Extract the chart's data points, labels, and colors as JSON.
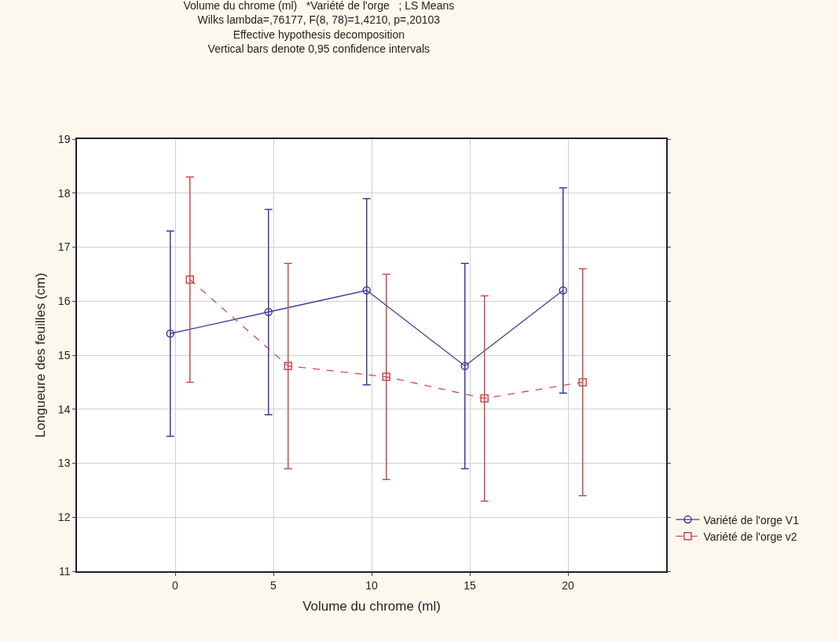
{
  "chart_data": {
    "type": "line",
    "title": "Volume du chrome (ml)   *Variété de l'orge   ; LS Means",
    "subtitle": "Wilks lambda=,76177, F(8, 78)=1,4210, p=,20103\nEffective hypothesis decomposition\nVertical bars denote 0,95 confidence intervals",
    "xlabel": "Volume du chrome (ml)",
    "ylabel": "Longueure des feuilles (cm)",
    "categories": [
      "0",
      "5",
      "10",
      "15",
      "20"
    ],
    "series": [
      {
        "name": "Variété de l'orge V1",
        "color": "#3c3c9c",
        "marker": "circle",
        "line_style": "solid",
        "values": [
          15.4,
          15.8,
          16.2,
          14.8,
          16.2
        ],
        "errors": [
          [
            13.5,
            17.3
          ],
          [
            13.9,
            17.7
          ],
          [
            14.45,
            17.9
          ],
          [
            12.9,
            16.7
          ],
          [
            14.3,
            18.1
          ]
        ]
      },
      {
        "name": "Variété de l'orge v2",
        "color": "#cc4c4c",
        "marker": "square",
        "line_style": "dashed",
        "values": [
          16.4,
          14.8,
          14.6,
          14.2,
          14.5
        ],
        "errors": [
          [
            14.5,
            18.3
          ],
          [
            12.9,
            16.7
          ],
          [
            12.7,
            16.5
          ],
          [
            12.3,
            16.1
          ],
          [
            12.4,
            16.6
          ]
        ]
      }
    ],
    "ylim": [
      11,
      19
    ],
    "yticks": [
      11,
      12,
      13,
      14,
      15,
      16,
      17,
      18,
      19
    ],
    "grid": true,
    "legend": "bottom right"
  }
}
